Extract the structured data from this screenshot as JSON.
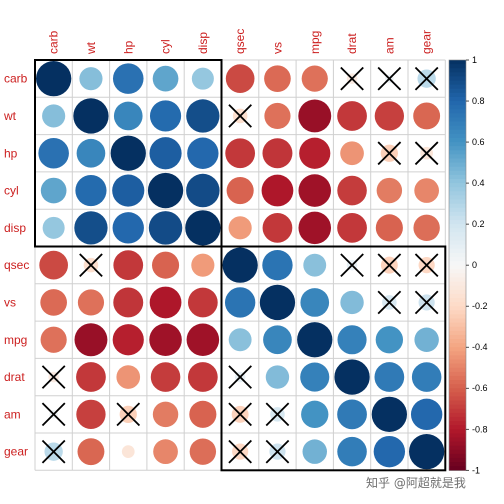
{
  "chart_data": {
    "type": "heatmap",
    "subtype": "correlation-circle-matrix",
    "variables": [
      "carb",
      "wt",
      "hp",
      "cyl",
      "disp",
      "qsec",
      "vs",
      "mpg",
      "drat",
      "am",
      "gear"
    ],
    "matrix": [
      [
        1.0,
        0.43,
        0.75,
        0.53,
        0.39,
        -0.66,
        -0.57,
        -0.55,
        -0.09,
        0.06,
        0.27
      ],
      [
        0.43,
        1.0,
        0.66,
        0.78,
        0.89,
        -0.17,
        -0.55,
        -0.87,
        -0.71,
        -0.69,
        -0.58
      ],
      [
        0.75,
        0.66,
        1.0,
        0.83,
        0.79,
        -0.71,
        -0.72,
        -0.78,
        -0.45,
        -0.24,
        -0.13
      ],
      [
        0.53,
        0.78,
        0.83,
        1.0,
        0.9,
        -0.59,
        -0.81,
        -0.85,
        -0.7,
        -0.52,
        -0.49
      ],
      [
        0.39,
        0.89,
        0.79,
        0.9,
        1.0,
        -0.43,
        -0.71,
        -0.85,
        -0.71,
        -0.59,
        -0.56
      ],
      [
        -0.66,
        -0.17,
        -0.71,
        -0.59,
        -0.43,
        1.0,
        0.74,
        0.42,
        0.09,
        -0.23,
        -0.21
      ],
      [
        -0.57,
        -0.55,
        -0.72,
        -0.81,
        -0.71,
        0.74,
        1.0,
        0.66,
        0.44,
        0.17,
        0.21
      ],
      [
        -0.55,
        -0.87,
        -0.78,
        -0.85,
        -0.85,
        0.42,
        0.66,
        1.0,
        0.68,
        0.6,
        0.48
      ],
      [
        -0.09,
        -0.71,
        -0.45,
        -0.7,
        -0.71,
        0.09,
        0.44,
        0.68,
        1.0,
        0.71,
        0.7
      ],
      [
        0.06,
        -0.69,
        -0.24,
        -0.52,
        -0.59,
        -0.23,
        0.17,
        0.6,
        0.71,
        1.0,
        0.79
      ],
      [
        0.27,
        -0.58,
        -0.13,
        -0.49,
        -0.56,
        -0.21,
        0.21,
        0.48,
        0.7,
        0.79,
        1.0
      ]
    ],
    "insignificant": [
      [
        0,
        8
      ],
      [
        0,
        9
      ],
      [
        0,
        10
      ],
      [
        1,
        5
      ],
      [
        2,
        9
      ],
      [
        2,
        10
      ],
      [
        5,
        1
      ],
      [
        5,
        8
      ],
      [
        5,
        9
      ],
      [
        5,
        10
      ],
      [
        6,
        9
      ],
      [
        6,
        10
      ],
      [
        8,
        0
      ],
      [
        8,
        5
      ],
      [
        9,
        0
      ],
      [
        9,
        2
      ],
      [
        9,
        5
      ],
      [
        9,
        6
      ],
      [
        10,
        0
      ],
      [
        10,
        5
      ],
      [
        10,
        6
      ]
    ],
    "clusters": [
      {
        "start": 0,
        "end": 4
      },
      {
        "start": 5,
        "end": 10
      }
    ],
    "colorbar": {
      "range": [
        -1,
        1
      ],
      "ticks": [
        "1",
        "0.8",
        "0.6",
        "0.4",
        "0.2",
        "0",
        "-0.2",
        "-0.4",
        "-0.6",
        "-0.8",
        "-1"
      ],
      "tick_values": [
        1,
        0.8,
        0.6,
        0.4,
        0.2,
        0,
        -0.2,
        -0.4,
        -0.6,
        -0.8,
        -1
      ]
    },
    "colors": {
      "negative_strong": "#67001f",
      "neutral": "#f7f7f7",
      "positive_strong": "#053061",
      "label_color": "#cc1f1f",
      "grid_color": "#d0d0d0"
    }
  },
  "watermark": "知乎 @阿超就是我"
}
